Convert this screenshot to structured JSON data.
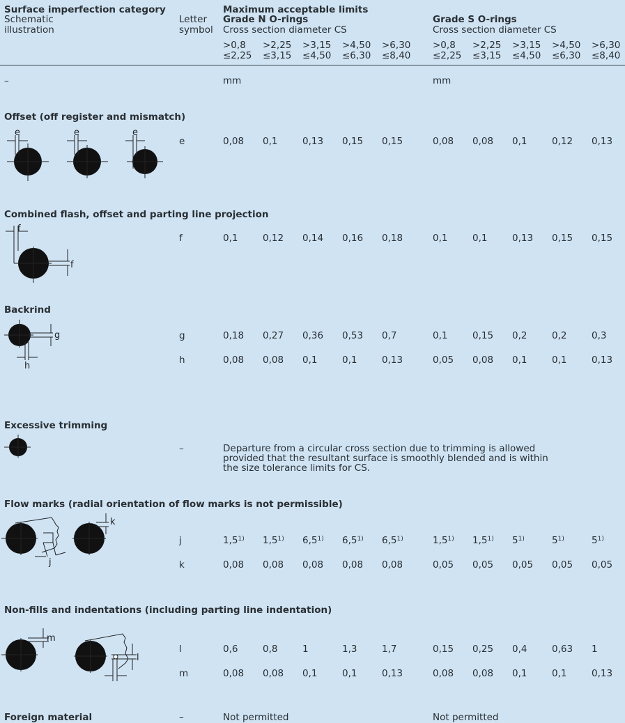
{
  "header": {
    "category_title": "Surface imperfection category",
    "schematic": [
      "Schematic",
      "illustration"
    ],
    "letter": [
      "Letter",
      "symbol"
    ],
    "max_limits": "Maximum acceptable limits",
    "grade_n": "Grade N O-rings",
    "grade_s": "Grade S O-rings",
    "cs_label": "Cross section diameter CS",
    "ranges_top": [
      ">0,8",
      ">2,25",
      ">3,15",
      ">4,50",
      ">6,30"
    ],
    "ranges_bottom": [
      "≤2,25",
      "≤3,15",
      "≤4,50",
      "≤6,30",
      "≤8,40"
    ],
    "dash": "–",
    "unit": "mm"
  },
  "sections": [
    {
      "title": "Offset (off register and mismatch)",
      "rows": [
        {
          "symbol": "e",
          "n": [
            "0,08",
            "0,1",
            "0,13",
            "0,15",
            "0,15"
          ],
          "s": [
            "0,08",
            "0,08",
            "0,1",
            "0,12",
            "0,13"
          ]
        }
      ],
      "labels": [
        "e",
        "e",
        "e"
      ]
    },
    {
      "title": "Combined flash, offset and parting line projection",
      "rows": [
        {
          "symbol": "f",
          "n": [
            "0,1",
            "0,12",
            "0,14",
            "0,16",
            "0,18"
          ],
          "s": [
            "0,1",
            "0,1",
            "0,13",
            "0,15",
            "0,15"
          ]
        }
      ],
      "labels": [
        "f",
        "f"
      ]
    },
    {
      "title": "Backrind",
      "rows": [
        {
          "symbol": "g",
          "n": [
            "0,18",
            "0,27",
            "0,36",
            "0,53",
            "0,7"
          ],
          "s": [
            "0,1",
            "0,15",
            "0,2",
            "0,2",
            "0,3"
          ]
        },
        {
          "symbol": "h",
          "n": [
            "0,08",
            "0,08",
            "0,1",
            "0,1",
            "0,13"
          ],
          "s": [
            "0,05",
            "0,08",
            "0,1",
            "0,1",
            "0,13"
          ]
        }
      ],
      "labels": [
        "g",
        "h"
      ]
    },
    {
      "title": "Excessive trimming",
      "symbol": "–",
      "text": [
        "Departure from a circular cross section due to trimming is allowed",
        "provided that the resultant surface is smoothly blended and is within",
        "the size tolerance limits for CS."
      ]
    },
    {
      "title": "Flow marks (radial orientation of flow marks is not permissible)",
      "rows": [
        {
          "symbol": "j",
          "n": [
            "1,5",
            "1,5",
            "6,5",
            "6,5",
            "6,5"
          ],
          "s": [
            "1,5",
            "1,5",
            "5",
            "5",
            "5"
          ],
          "sup": "1)"
        },
        {
          "symbol": "k",
          "n": [
            "0,08",
            "0,08",
            "0,08",
            "0,08",
            "0,08"
          ],
          "s": [
            "0,05",
            "0,05",
            "0,05",
            "0,05",
            "0,05"
          ]
        }
      ],
      "labels": [
        "j",
        "k"
      ]
    },
    {
      "title": "Non-fills and indentations (including parting line indentation)",
      "rows": [
        {
          "symbol": "l",
          "n": [
            "0,6",
            "0,8",
            "1",
            "1,3",
            "1,7"
          ],
          "s": [
            "0,15",
            "0,25",
            "0,4",
            "0,63",
            "1"
          ]
        },
        {
          "symbol": "m",
          "n": [
            "0,08",
            "0,08",
            "0,1",
            "0,1",
            "0,13"
          ],
          "s": [
            "0,08",
            "0,08",
            "0,1",
            "0,1",
            "0,13"
          ]
        }
      ],
      "labels": [
        "m",
        "l"
      ]
    },
    {
      "title": "Foreign material",
      "symbol": "–",
      "n_text": "Not permitted",
      "s_text": "Not permitted"
    }
  ]
}
